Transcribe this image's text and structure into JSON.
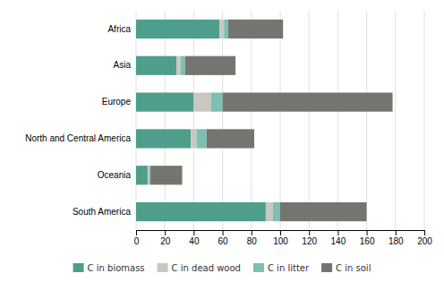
{
  "chart_data": {
    "type": "bar",
    "orientation": "horizontal",
    "stacked": true,
    "categories": [
      "South America",
      "Oceania",
      "North and Central America",
      "Europe",
      "Asia",
      "Africa"
    ],
    "series": [
      {
        "name": "C in biomass",
        "color": "#4d9e8a",
        "values": [
          90,
          8,
          38,
          40,
          28,
          58
        ]
      },
      {
        "name": "C in dead wood",
        "color": "#c8c8c0",
        "values": [
          5,
          1,
          4,
          12,
          3,
          3
        ]
      },
      {
        "name": "C in litter",
        "color": "#7dbfb0",
        "values": [
          5,
          1,
          7,
          8,
          3,
          3
        ]
      },
      {
        "name": "C in soil",
        "color": "#757570",
        "values": [
          60,
          22,
          33,
          118,
          35,
          38
        ]
      }
    ],
    "xlim": [
      0,
      200
    ],
    "xticks": [
      0,
      20,
      40,
      60,
      80,
      100,
      120,
      140,
      160,
      180,
      200
    ],
    "grid": true,
    "legend": "bottom"
  }
}
